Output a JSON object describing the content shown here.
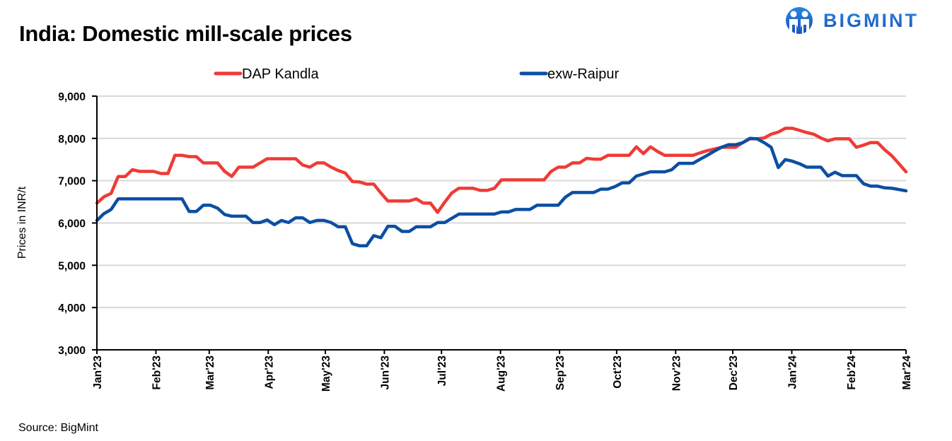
{
  "header": {
    "title": "India: Domestic mill-scale prices",
    "logo_text": "BIGMINT",
    "logo_icon": "bigmint-people-logo-icon"
  },
  "footer": {
    "source": "Source: BigMint"
  },
  "colors": {
    "dap_kandla": "#EF3B36",
    "exw_raipur": "#0B4FA3",
    "grid": "#D9D9D9",
    "axis": "#000000"
  },
  "chart_data": {
    "type": "line",
    "title": "India: Domestic mill-scale prices",
    "xlabel": "",
    "ylabel": "Prices in INR/t",
    "ylim": [
      3000,
      9000
    ],
    "yticks": [
      3000,
      4000,
      5000,
      6000,
      7000,
      8000,
      9000
    ],
    "ytick_labels": [
      "3,000",
      "4,000",
      "5,000",
      "6,000",
      "7,000",
      "8,000",
      "9,000"
    ],
    "grid": true,
    "legend_position": "top",
    "x_month_ticks": [
      {
        "label": "Jan'23",
        "index": 0
      },
      {
        "label": "Feb'23",
        "index": 7
      },
      {
        "label": "Mar'23",
        "index": 14
      },
      {
        "label": "Apr'23",
        "index": 21
      },
      {
        "label": "May'23",
        "index": 28
      },
      {
        "label": "Jun'23",
        "index": 35
      },
      {
        "label": "Jul'23",
        "index": 42
      },
      {
        "label": "Aug'23",
        "index": 49
      },
      {
        "label": "Sep'23",
        "index": 56
      },
      {
        "label": "Oct'23",
        "index": 63
      },
      {
        "label": "Nov'23",
        "index": 70
      },
      {
        "label": "Dec'23",
        "index": 77
      },
      {
        "label": "Jan'24",
        "index": 84
      },
      {
        "label": "Feb'24",
        "index": 91
      },
      {
        "label": "Mar'24",
        "index": 98
      }
    ],
    "x_count": 115,
    "series": [
      {
        "name": "DAP Kandla",
        "color": "#EF3B36",
        "values": [
          6470,
          6620,
          6700,
          7100,
          7100,
          7260,
          7220,
          7220,
          7220,
          7170,
          7170,
          7600,
          7600,
          7570,
          7570,
          7420,
          7420,
          7420,
          7220,
          7100,
          7320,
          7320,
          7320,
          7420,
          7520,
          7520,
          7520,
          7520,
          7520,
          7370,
          7320,
          7420,
          7420,
          7320,
          7240,
          7180,
          6980,
          6970,
          6920,
          6920,
          6710,
          6520,
          6520,
          6520,
          6520,
          6570,
          6470,
          6470,
          6250,
          6490,
          6710,
          6820,
          6820,
          6820,
          6770,
          6770,
          6820,
          7020,
          7020,
          7020,
          7020,
          7020,
          7020,
          7020,
          7220,
          7320,
          7320,
          7420,
          7420,
          7530,
          7510,
          7510,
          7600,
          7600,
          7600,
          7600,
          7800,
          7640,
          7800,
          7690,
          7600,
          7600,
          7600,
          7600,
          7600,
          7660,
          7710,
          7750,
          7790,
          7790,
          7790,
          7900,
          7990,
          7990,
          8010,
          8100,
          8150,
          8240,
          8240,
          8190,
          8140,
          8100,
          8010,
          7940,
          7990,
          7990,
          7990,
          7790,
          7840,
          7900,
          7900,
          7730,
          7590,
          7400,
          7210
        ]
      },
      {
        "name": "exw-Raipur",
        "color": "#0B4FA3",
        "values": [
          6060,
          6220,
          6320,
          6570,
          6570,
          6570,
          6570,
          6570,
          6570,
          6570,
          6570,
          6570,
          6570,
          6270,
          6270,
          6420,
          6420,
          6350,
          6200,
          6160,
          6160,
          6160,
          6010,
          6010,
          6070,
          5960,
          6060,
          6010,
          6120,
          6120,
          6010,
          6060,
          6060,
          6010,
          5910,
          5910,
          5510,
          5460,
          5460,
          5700,
          5650,
          5920,
          5920,
          5800,
          5800,
          5910,
          5910,
          5910,
          6010,
          6010,
          6110,
          6210,
          6210,
          6210,
          6210,
          6210,
          6210,
          6260,
          6260,
          6320,
          6320,
          6320,
          6420,
          6420,
          6420,
          6420,
          6610,
          6720,
          6720,
          6720,
          6720,
          6800,
          6800,
          6860,
          6950,
          6950,
          7110,
          7160,
          7210,
          7210,
          7210,
          7260,
          7410,
          7410,
          7410,
          7510,
          7600,
          7700,
          7790,
          7850,
          7850,
          7900,
          8000,
          7990,
          7900,
          7790,
          7310,
          7500,
          7460,
          7400,
          7320,
          7320,
          7320,
          7110,
          7200,
          7120,
          7120,
          7120,
          6930,
          6870,
          6870,
          6830,
          6820,
          6790,
          6760
        ]
      }
    ]
  }
}
